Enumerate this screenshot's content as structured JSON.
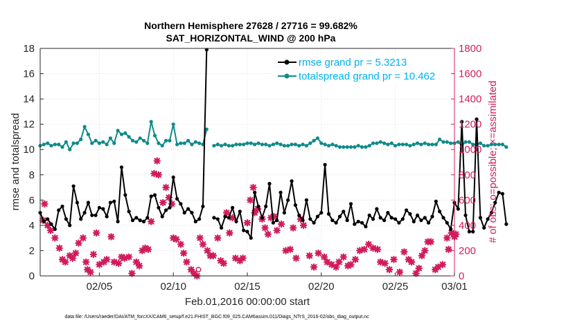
{
  "colors": {
    "rmse": "#000000",
    "spread": "#0f8a8a",
    "obs": "#d01c5c",
    "legend_text": "#00b0f0",
    "axis": "#262626",
    "right_axis": "#d01c5c"
  },
  "chart_data": {
    "type": "line",
    "title_line1": "Northern Hemisphere 27628 / 27716 = 99.682%",
    "title_line2": "SAT_HORIZONTAL_WIND @ 200 hPa",
    "xlabel": "Feb.01,2016 00:00:00 start",
    "ylabel_left": "rmse and totalspread",
    "ylabel_right": "# of obs: o=possible; ×=assimilated",
    "footnote": "data file: /Users/raeder/DAI/ATM_forcXX/CAM6_setup/f.e21.FHIST_BGC.f09_025.CAM6assim.011/Diags_NTrS_2016-02/obs_diag_output.nc",
    "x_range_days": [
      1,
      29
    ],
    "ylim_left": [
      0,
      18
    ],
    "ylim_right": [
      0,
      1800
    ],
    "x_ticks": [
      {
        "day": 5,
        "label": "02/05"
      },
      {
        "day": 10,
        "label": "02/10"
      },
      {
        "day": 15,
        "label": "02/15"
      },
      {
        "day": 20,
        "label": "02/20"
      },
      {
        "day": 25,
        "label": "02/25"
      },
      {
        "day": 29,
        "label": "03/01"
      }
    ],
    "y_ticks_left": [
      "0",
      "2",
      "4",
      "6",
      "8",
      "10",
      "12",
      "14",
      "16",
      "18"
    ],
    "y_ticks_right": [
      "0",
      "200",
      "400",
      "600",
      "800",
      "1000",
      "1200",
      "1400",
      "1600",
      "1800"
    ],
    "legend": {
      "rmse_label": "rmse grand pr = 5.3213",
      "spread_label": "totalspread grand pr = 10.462"
    },
    "series": [
      {
        "name": "rmse",
        "step_hours": 6,
        "values": [
          5.0,
          4.3,
          4.5,
          4.1,
          3.7,
          5.2,
          5.5,
          4.5,
          4.0,
          7.1,
          5.8,
          4.5,
          5.0,
          5.8,
          4.8,
          4.8,
          5.4,
          5.3,
          4.7,
          5.8,
          5.9,
          4.3,
          8.6,
          6.4,
          5.1,
          4.4,
          4.6,
          4.4,
          4.3,
          4.6,
          6.3,
          6.4,
          5.4,
          4.7,
          5.2,
          5.4,
          7.8,
          6.1,
          5.7,
          5.0,
          5.3,
          5.0,
          4.3,
          4.5,
          5.5,
          17.9,
          null,
          4.6,
          4.5,
          3.8,
          4.7,
          4.6,
          5.4,
          4.3,
          5.1,
          3.6,
          3.5,
          3.0,
          6.6,
          5.5,
          4.6,
          5.5,
          7.3,
          4.2,
          4.4,
          6.6,
          5.0,
          6.0,
          7.5,
          5.6,
          4.8,
          4.4,
          6.0,
          4.5,
          4.2,
          4.7,
          5.0,
          8.8,
          4.9,
          4.4,
          4.2,
          4.7,
          5.1,
          4.4,
          5.7,
          4.1,
          4.3,
          4.2,
          3.9,
          4.8,
          4.5,
          5.3,
          4.6,
          4.4,
          5.0,
          4.6,
          4.5,
          4.2,
          4.5,
          5.2,
          4.9,
          4.3,
          4.8,
          4.4,
          4.6,
          4.2,
          4.7,
          5.9,
          5.1,
          4.6,
          4.2,
          3.7,
          5.8,
          5.3,
          12.2,
          4.8,
          3.5,
          3.5,
          12.4,
          4.6,
          3.8,
          4.5,
          5.0,
          5.8,
          6.6,
          6.5,
          4.1
        ]
      },
      {
        "name": "totalspread",
        "step_hours": 6,
        "values": [
          10.3,
          10.4,
          10.5,
          10.3,
          10.4,
          10.4,
          10.2,
          10.6,
          10.0,
          10.5,
          10.5,
          10.8,
          11.8,
          11.2,
          10.5,
          10.7,
          10.5,
          10.6,
          10.4,
          10.9,
          10.5,
          11.5,
          11.2,
          11.3,
          11.0,
          10.7,
          10.6,
          10.9,
          10.7,
          10.5,
          12.2,
          11.1,
          10.5,
          10.3,
          10.7,
          10.7,
          12.0,
          10.4,
          10.5,
          10.5,
          10.7,
          10.4,
          10.6,
          10.5,
          10.4,
          11.6,
          null,
          10.3,
          10.4,
          10.3,
          10.4,
          10.3,
          10.3,
          10.4,
          10.4,
          10.4,
          10.5,
          10.5,
          10.4,
          10.5,
          10.4,
          10.4,
          10.3,
          10.4,
          10.5,
          10.4,
          10.3,
          10.3,
          10.4,
          10.4,
          10.3,
          10.4,
          10.3,
          10.5,
          10.7,
          10.9,
          10.5,
          10.4,
          10.3,
          10.4,
          10.3,
          10.2,
          10.2,
          10.2,
          10.2,
          10.2,
          10.3,
          10.2,
          10.2,
          10.3,
          10.5,
          10.5,
          10.6,
          10.5,
          10.4,
          10.5,
          10.3,
          10.4,
          10.4,
          10.4,
          10.3,
          10.4,
          10.5,
          10.4,
          10.5,
          10.4,
          10.4,
          10.4,
          10.8,
          10.6,
          10.6,
          10.5,
          10.5,
          10.6,
          10.3,
          10.6,
          10.6,
          10.4,
          10.4,
          10.5,
          10.3,
          10.3,
          10.4,
          10.4,
          10.4,
          10.4,
          10.2
        ]
      },
      {
        "name": "obs_assimilated",
        "marker": "x",
        "points": [
          [
            1.2,
            440
          ],
          [
            1.3,
            570
          ],
          [
            1.5,
            400
          ],
          [
            1.7,
            360
          ],
          [
            2.0,
            300
          ],
          [
            2.3,
            220
          ],
          [
            2.5,
            130
          ],
          [
            2.7,
            110
          ],
          [
            3.0,
            160
          ],
          [
            3.2,
            140
          ],
          [
            3.4,
            180
          ],
          [
            3.6,
            260
          ],
          [
            3.9,
            300
          ],
          [
            4.1,
            110
          ],
          [
            4.2,
            50
          ],
          [
            4.4,
            30
          ],
          [
            4.6,
            170
          ],
          [
            4.8,
            340
          ],
          [
            5.0,
            90
          ],
          [
            5.3,
            110
          ],
          [
            5.5,
            130
          ],
          [
            5.8,
            310
          ],
          [
            6.0,
            110
          ],
          [
            6.3,
            100
          ],
          [
            6.5,
            150
          ],
          [
            6.7,
            140
          ],
          [
            7.0,
            150
          ],
          [
            7.2,
            20
          ],
          [
            7.5,
            110
          ],
          [
            7.7,
            80
          ],
          [
            7.9,
            200
          ],
          [
            8.1,
            220
          ],
          [
            8.3,
            210
          ],
          [
            8.5,
            430
          ],
          [
            8.7,
            810
          ],
          [
            8.9,
            910
          ],
          [
            9.0,
            800
          ],
          [
            9.3,
            580
          ],
          [
            9.5,
            700
          ],
          [
            9.7,
            620
          ],
          [
            9.9,
            570
          ],
          [
            10.0,
            300
          ],
          [
            10.2,
            290
          ],
          [
            10.5,
            250
          ],
          [
            10.7,
            180
          ],
          [
            10.9,
            110
          ],
          [
            11.2,
            50
          ],
          [
            11.4,
            20
          ],
          [
            11.6,
            0
          ],
          [
            11.8,
            300
          ],
          [
            12.0,
            250
          ],
          [
            12.3,
            200
          ],
          [
            12.5,
            160
          ],
          [
            12.7,
            160
          ],
          [
            13.0,
            300
          ],
          [
            13.2,
            120
          ],
          [
            13.4,
            100
          ],
          [
            13.6,
            500
          ],
          [
            13.8,
            340
          ],
          [
            14.0,
            460
          ],
          [
            14.2,
            140
          ],
          [
            14.5,
            120
          ],
          [
            14.7,
            140
          ],
          [
            15.0,
            420
          ],
          [
            15.2,
            600
          ],
          [
            15.4,
            700
          ],
          [
            15.5,
            500
          ],
          [
            15.7,
            530
          ],
          [
            16.0,
            450
          ],
          [
            16.2,
            380
          ],
          [
            16.4,
            330
          ],
          [
            16.6,
            460
          ],
          [
            16.8,
            470
          ],
          [
            17.0,
            360
          ],
          [
            17.3,
            410
          ],
          [
            17.6,
            200
          ],
          [
            17.9,
            210
          ],
          [
            18.1,
            380
          ],
          [
            18.3,
            140
          ],
          [
            18.6,
            450
          ],
          [
            18.8,
            400
          ],
          [
            19.2,
            160
          ],
          [
            19.5,
            70
          ],
          [
            19.8,
            180
          ],
          [
            20.2,
            150
          ],
          [
            20.4,
            110
          ],
          [
            20.7,
            90
          ],
          [
            21.0,
            70
          ],
          [
            21.2,
            110
          ],
          [
            21.5,
            150
          ],
          [
            21.8,
            80
          ],
          [
            22.0,
            90
          ],
          [
            22.3,
            130
          ],
          [
            22.6,
            200
          ],
          [
            22.9,
            210
          ],
          [
            23.2,
            250
          ],
          [
            23.5,
            220
          ],
          [
            23.8,
            210
          ],
          [
            24.0,
            110
          ],
          [
            24.3,
            100
          ],
          [
            24.6,
            50
          ],
          [
            24.9,
            130
          ],
          [
            25.3,
            30
          ],
          [
            25.6,
            190
          ],
          [
            25.9,
            130
          ],
          [
            26.1,
            110
          ],
          [
            26.4,
            20
          ],
          [
            26.6,
            60
          ],
          [
            26.8,
            160
          ],
          [
            27.0,
            200
          ],
          [
            27.2,
            270
          ],
          [
            27.4,
            270
          ],
          [
            27.7,
            50
          ],
          [
            27.9,
            70
          ],
          [
            28.2,
            90
          ],
          [
            28.5,
            300
          ],
          [
            28.6,
            210
          ],
          [
            28.8,
            340
          ],
          [
            29.0,
            310
          ],
          [
            29.1,
            330
          ]
        ]
      },
      {
        "name": "obs_possible",
        "marker": "o",
        "points": [
          [
            11.7,
            50
          ]
        ]
      }
    ]
  }
}
